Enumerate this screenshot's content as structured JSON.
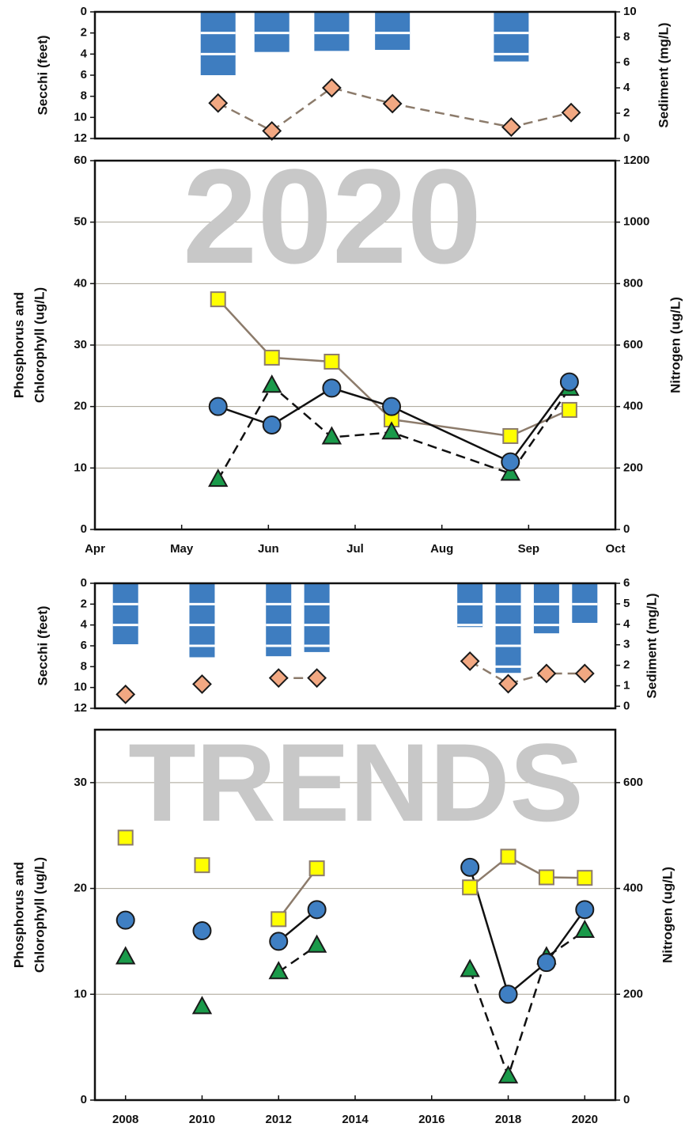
{
  "chart_data": [
    {
      "type": "combo",
      "ylabel": "Secchi (feet)",
      "y2label": "Sediment (mg/L)",
      "x": [
        5.42,
        6.04,
        6.73,
        7.43,
        8.8,
        9.49
      ],
      "xlim": [
        4,
        10
      ],
      "ylim": [
        12,
        0
      ],
      "yticks": [
        0,
        2,
        4,
        6,
        8,
        10,
        12
      ],
      "y2lim": [
        0,
        10
      ],
      "y2ticks": [
        0,
        2,
        4,
        6,
        8,
        10
      ],
      "grid": false,
      "series": [
        {
          "kind": "bar",
          "color": "#3e7dc0",
          "values": [
            6.0,
            3.8,
            3.7,
            3.6,
            4.7,
            null
          ]
        },
        {
          "kind": "line",
          "axis": "y2",
          "marker": "diamond",
          "color": "#f2a882",
          "line_color": "#8c7b6b",
          "dash": true,
          "values": [
            2.8,
            0.6,
            4.0,
            2.75,
            0.9,
            2.05
          ]
        }
      ]
    },
    {
      "type": "line",
      "watermark": "2020",
      "ylabel": [
        "Phosphorus and",
        "Chlorophyll (ug/L)"
      ],
      "y2label": "Nitrogen (ug/L)",
      "x": [
        5.42,
        6.04,
        6.73,
        7.42,
        8.79,
        9.47
      ],
      "xlim": [
        4,
        10
      ],
      "xticks": [
        {
          "value": 4,
          "label": "Apr"
        },
        {
          "value": 5,
          "label": "May"
        },
        {
          "value": 6,
          "label": "Jun"
        },
        {
          "value": 7,
          "label": "Jul"
        },
        {
          "value": 8,
          "label": "Aug"
        },
        {
          "value": 9,
          "label": "Sep"
        },
        {
          "value": 10,
          "label": "Oct"
        }
      ],
      "ylim": [
        0,
        60
      ],
      "yticks": [
        0,
        10,
        20,
        30,
        40,
        50,
        60
      ],
      "y2lim": [
        0,
        1200
      ],
      "y2ticks": [
        0,
        200,
        400,
        600,
        800,
        1000,
        1200
      ],
      "grid": true,
      "series": [
        {
          "kind": "line",
          "axis": "y2",
          "marker": "square",
          "color": "#ffff00",
          "line_color": "#8c7b6b",
          "dash": false,
          "values": [
            749,
            559,
            546,
            358,
            304,
            389
          ]
        },
        {
          "kind": "line",
          "marker": "triangle",
          "color": "#1a9a4a",
          "line_color": "#111111",
          "dash": true,
          "values": [
            8.1,
            23.4,
            15,
            15.8,
            9.1,
            22.9
          ]
        },
        {
          "kind": "line",
          "marker": "circle",
          "color": "#3f7fc3",
          "line_color": "#111111",
          "dash": false,
          "values": [
            20,
            17,
            23,
            20,
            11,
            24
          ]
        }
      ]
    },
    {
      "type": "combo",
      "ylabel": "Secchi (feet)",
      "y2label": "Sediment (mg/L)",
      "x": [
        2008,
        2009,
        2010,
        2011,
        2012,
        2013,
        2014,
        2015,
        2016,
        2017,
        2018,
        2019,
        2020
      ],
      "xlim": [
        2007.2,
        2020.8
      ],
      "ylim": [
        12,
        0
      ],
      "yticks": [
        0,
        2,
        4,
        6,
        8,
        10,
        12
      ],
      "y2lim": [
        -0.1,
        6
      ],
      "y2ticks": [
        0,
        1,
        2,
        3,
        4,
        5,
        6
      ],
      "grid": false,
      "series": [
        {
          "kind": "bar",
          "color": "#3e7dc0",
          "values": [
            5.85,
            null,
            7.1,
            null,
            7.0,
            6.6,
            null,
            null,
            null,
            4.2,
            8.6,
            4.8,
            3.8
          ]
        },
        {
          "kind": "line",
          "axis": "y2",
          "marker": "diamond",
          "color": "#f2a882",
          "line_color": "#8c7b6b",
          "dash": true,
          "values": [
            0.58,
            null,
            1.08,
            null,
            1.38,
            1.38,
            null,
            null,
            null,
            2.2,
            1.1,
            1.6,
            1.6
          ]
        }
      ]
    },
    {
      "type": "line",
      "watermark": "TRENDS",
      "ylabel": [
        "Phosphorus and",
        "Chlorophyll (ug/L)"
      ],
      "y2label": "Nitrogen (ug/L)",
      "x": [
        2008,
        2009,
        2010,
        2011,
        2012,
        2013,
        2014,
        2015,
        2016,
        2017,
        2018,
        2019,
        2020
      ],
      "xlim": [
        2007.2,
        2020.8
      ],
      "xticks": [
        2008,
        2010,
        2012,
        2014,
        2016,
        2018,
        2020
      ],
      "ylim": [
        0,
        35
      ],
      "yticks": [
        0,
        10,
        20,
        30
      ],
      "y2lim": [
        0,
        700
      ],
      "y2ticks": [
        0,
        200,
        400,
        600
      ],
      "grid": true,
      "series": [
        {
          "kind": "line",
          "axis": "y2",
          "marker": "square",
          "color": "#ffff00",
          "line_color": "#8c7b6b",
          "dash": false,
          "values": [
            496,
            null,
            444,
            null,
            342,
            438,
            null,
            null,
            null,
            402,
            460,
            421,
            420
          ]
        },
        {
          "kind": "line",
          "marker": "triangle",
          "color": "#1a9a4a",
          "line_color": "#111111",
          "dash": true,
          "values": [
            13.5,
            null,
            8.8,
            null,
            12.1,
            14.6,
            null,
            null,
            null,
            12.3,
            2.25,
            13.5,
            16
          ]
        },
        {
          "kind": "line",
          "marker": "circle",
          "color": "#3f7fc3",
          "line_color": "#111111",
          "dash": false,
          "values": [
            17,
            null,
            16,
            null,
            15,
            18,
            null,
            null,
            null,
            22,
            10,
            13,
            18
          ]
        }
      ]
    }
  ]
}
